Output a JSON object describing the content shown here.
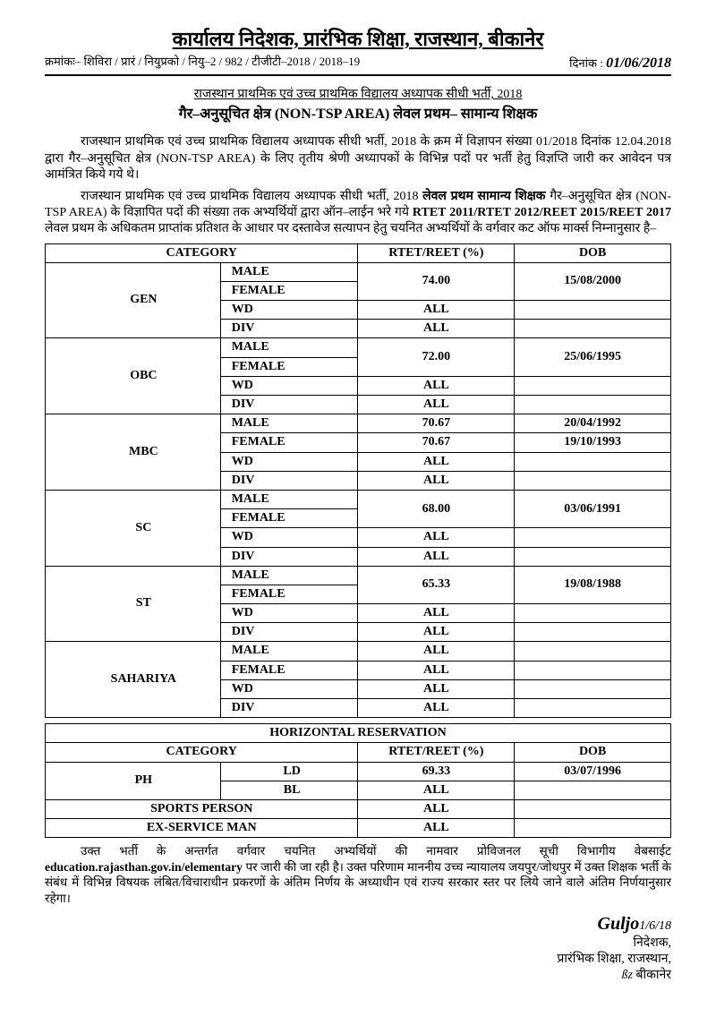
{
  "header": {
    "title": "कार्यालय निदेशक, प्रारंभिक शिक्षा, राजस्थान, बीकानेर",
    "ref_prefix": "क्रमांकः– शिविरा / प्रारं / नियुप्रको / नियु–2 / 982 / टीजीटी–2018 / 2018–19",
    "date_label": "दिनांक :",
    "date_value": "01/06/2018"
  },
  "subheader": {
    "line1": "राजस्थान प्राथमिक एवं उच्च प्राथमिक विद्यालय अध्यापक सीधी भर्ती, 2018",
    "line2": "गैर–अनुसूचित क्षेत्र (NON-TSP AREA) लेवल प्रथम– सामान्य शिक्षक"
  },
  "para1": "राजस्थान प्राथमिक एवं उच्च प्राथमिक विद्यालय अध्यापक सीधी भर्ती, 2018 के क्रम में विज्ञापन संख्या 01/2018 दिनांक 12.04.2018 द्वारा गैर–अनुसूचित क्षेत्र (NON-TSP AREA) के लिए तृतीय श्रेणी अध्यापकों के विभिन्न पदों पर भर्ती हेतु विज्ञप्ति जारी कर आवेदन पत्र आमंत्रित किये गये थे।",
  "para2_a": "राजस्थान प्राथमिक एवं उच्च प्राथमिक विद्यालय अध्यापक सीधी भर्ती, 2018 ",
  "para2_b": "लेवल प्रथम सामान्य शिक्षक",
  "para2_c": " गैर–अनुसूचित क्षेत्र (NON-TSP AREA) के विज्ञापित पदों की संख्या तक अभ्यर्थियों द्वारा ऑन–लाईन भरे गये ",
  "para2_d": "RTET 2011/RTET 2012/REET 2015/REET 2017",
  "para2_e": " लेवल प्रथम के अधिकतम प्राप्तांक प्रतिशत के आधार पर दस्तावेज सत्यापन हेतु चयनित अभ्यर्थियों के वर्गवार कट ऑफ मार्क्स निम्नानुसार है–",
  "table1": {
    "headers": {
      "category": "CATEGORY",
      "rtet": "RTET/REET (%)",
      "dob": "DOB"
    },
    "groups": [
      {
        "cat": "GEN",
        "rows": [
          {
            "sub": "MALE",
            "rtet": "74.00",
            "dob": "15/08/2000",
            "merge_rtet": 2,
            "merge_dob": 2
          },
          {
            "sub": "FEMALE"
          },
          {
            "sub": "WD",
            "rtet": "ALL",
            "dob": ""
          },
          {
            "sub": "DIV",
            "rtet": "ALL",
            "dob": ""
          }
        ]
      },
      {
        "cat": "OBC",
        "rows": [
          {
            "sub": "MALE",
            "rtet": "72.00",
            "dob": "25/06/1995",
            "merge_rtet": 2,
            "merge_dob": 2
          },
          {
            "sub": "FEMALE"
          },
          {
            "sub": "WD",
            "rtet": "ALL",
            "dob": ""
          },
          {
            "sub": "DIV",
            "rtet": "ALL",
            "dob": ""
          }
        ]
      },
      {
        "cat": "MBC",
        "rows": [
          {
            "sub": "MALE",
            "rtet": "70.67",
            "dob": "20/04/1992"
          },
          {
            "sub": "FEMALE",
            "rtet": "70.67",
            "dob": "19/10/1993"
          },
          {
            "sub": "WD",
            "rtet": "ALL",
            "dob": ""
          },
          {
            "sub": "DIV",
            "rtet": "ALL",
            "dob": ""
          }
        ]
      },
      {
        "cat": "SC",
        "rows": [
          {
            "sub": "MALE",
            "rtet": "68.00",
            "dob": "03/06/1991",
            "merge_rtet": 2,
            "merge_dob": 2
          },
          {
            "sub": "FEMALE"
          },
          {
            "sub": "WD",
            "rtet": "ALL",
            "dob": ""
          },
          {
            "sub": "DIV",
            "rtet": "ALL",
            "dob": ""
          }
        ]
      },
      {
        "cat": "ST",
        "rows": [
          {
            "sub": "MALE",
            "rtet": "65.33",
            "dob": "19/08/1988",
            "merge_rtet": 2,
            "merge_dob": 2
          },
          {
            "sub": "FEMALE"
          },
          {
            "sub": "WD",
            "rtet": "ALL",
            "dob": ""
          },
          {
            "sub": "DIV",
            "rtet": "ALL",
            "dob": ""
          }
        ]
      },
      {
        "cat": "SAHARIYA",
        "rows": [
          {
            "sub": "MALE",
            "rtet": "ALL",
            "dob": ""
          },
          {
            "sub": "FEMALE",
            "rtet": "ALL",
            "dob": ""
          },
          {
            "sub": "WD",
            "rtet": "ALL",
            "dob": ""
          },
          {
            "sub": "DIV",
            "rtet": "ALL",
            "dob": ""
          }
        ]
      }
    ]
  },
  "table2": {
    "title": "HORIZONTAL RESERVATION",
    "headers": {
      "category": "CATEGORY",
      "rtet": "RTET/REET (%)",
      "dob": "DOB"
    },
    "rows": [
      {
        "cat": "PH",
        "sub": "LD",
        "rtet": "69.33",
        "dob": "03/07/1996",
        "cat_rowspan": 2
      },
      {
        "sub": "BL",
        "rtet": "ALL",
        "dob": ""
      },
      {
        "cat": "SPORTS PERSON",
        "cat_colspan": 2,
        "rtet": "ALL",
        "dob": ""
      },
      {
        "cat": "EX-SERVICE MAN",
        "cat_colspan": 2,
        "rtet": "ALL",
        "dob": ""
      }
    ]
  },
  "footer_para_a": "उक्त भर्ती के अन्तर्गत वर्गवार चयनित अभ्यर्थियों की नामवार प्रोविजनल सूची विभागीय वेबसाईट ",
  "footer_para_b": "education.rajasthan.gov.in/elementary",
  "footer_para_c": " पर जारी की जा रही है। उक्त परिणाम माननीय उच्च न्यायालय जयपुर/जोधपुर में उक्त शिक्षक भर्ती के संबंध में विभिन्न विषयक लंबित/विचाराधीन प्रकरणों के अंतिम निर्णय के अध्याधीन एवं राज्य सरकार स्तर पर लिये जाने वाले अंतिम निर्णयानुसार रहेगा।",
  "signature": {
    "scribble": "Guljo",
    "date": "1/6/18",
    "role": "निदेशक,",
    "org": "प्रारंभिक शिक्षा, राजस्थान,",
    "initials": "ßz",
    "place": "बीकानेर"
  }
}
